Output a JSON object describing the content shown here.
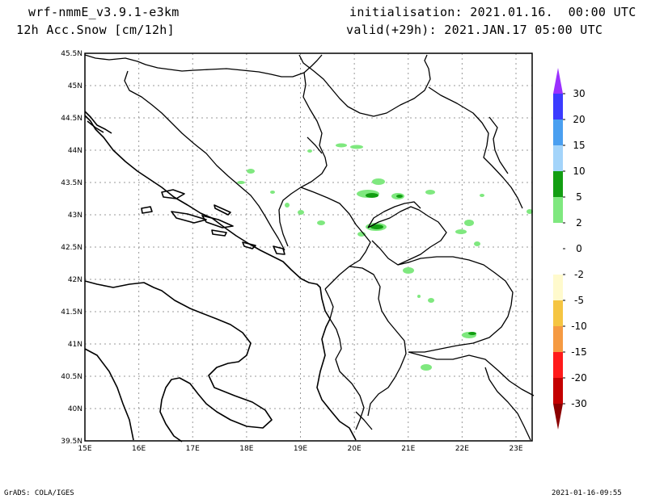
{
  "header": {
    "model": "wrf-nmmE_v3.9.1-e3km",
    "field": "12h Acc.Snow [cm/12h]",
    "init": "initialisation: 2021.01.16.  00:00 UTC",
    "valid": "valid(+29h): 2021.JAN.17 05:00 UTC"
  },
  "map": {
    "lon_range": [
      15,
      23.3
    ],
    "lat_range": [
      39.5,
      45.5
    ],
    "lat_ticks": [
      "45.5N",
      "45N",
      "44.5N",
      "44N",
      "43.5N",
      "43N",
      "42.5N",
      "42N",
      "41.5N",
      "41N",
      "40.5N",
      "40N",
      "39.5N"
    ],
    "lon_ticks": [
      "15E",
      "16E",
      "17E",
      "18E",
      "19E",
      "20E",
      "21E",
      "22E",
      "23E"
    ],
    "grid": "dotted"
  },
  "colorbar": {
    "labels": [
      "30",
      "20",
      "15",
      "10",
      "5",
      "2",
      "0",
      "-2",
      "-5",
      "-10",
      "-15",
      "-20",
      "-30"
    ],
    "colors": [
      "#3b3bff",
      "#4a9ff0",
      "#a3d4fa",
      "#129e12",
      "#7fe87f",
      "#ffffff",
      "#ffffff",
      "#fffacd",
      "#f5c542",
      "#f59a42",
      "#ff1a1a",
      "#c40000"
    ],
    "top_arrow_color": "#9b30ff",
    "bottom_arrow_color": "#8b0000"
  },
  "footer": {
    "left": "GrADS: COLA/IGES",
    "right": "2021-01-16-09:55"
  }
}
